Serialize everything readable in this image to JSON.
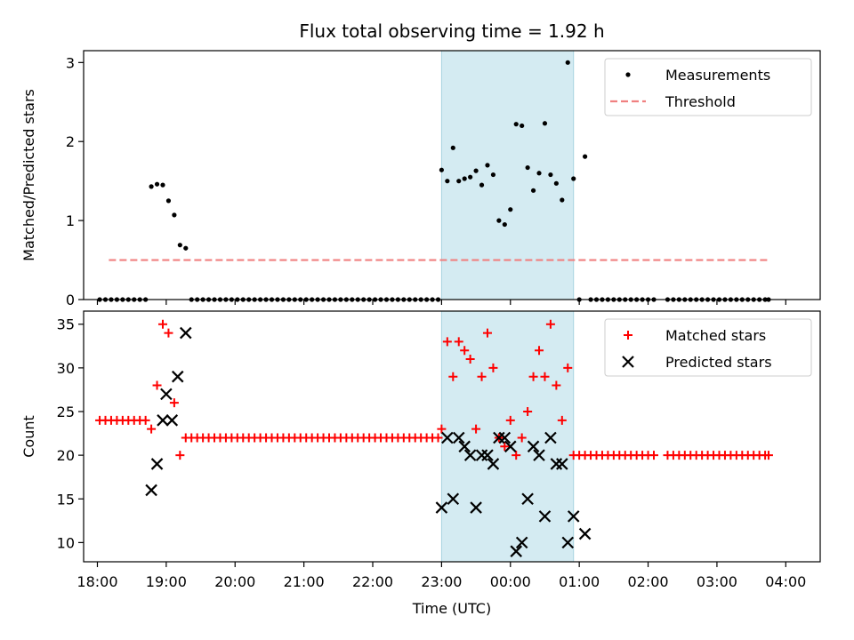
{
  "title": "Flux total observing time = 1.92 h",
  "xlabel": "Time (UTC)",
  "x_ticks": [
    "18:00",
    "19:00",
    "20:00",
    "21:00",
    "22:00",
    "23:00",
    "00:00",
    "01:00",
    "02:00",
    "03:00",
    "04:00"
  ],
  "shaded_interval": {
    "start": "23:00",
    "end": "00:55",
    "color": "#d4ebf2"
  },
  "chart_data": [
    {
      "type": "scatter",
      "ylabel": "Matched/Predicted stars",
      "ylim": [
        0,
        3.15
      ],
      "y_ticks": [
        0,
        1,
        2,
        3
      ],
      "legend": {
        "placement": "top-right"
      },
      "series": [
        {
          "name": "Measurements",
          "marker": "dot",
          "color": "#000000",
          "x": [
            "18:02",
            "18:07",
            "18:12",
            "18:17",
            "18:22",
            "18:27",
            "18:32",
            "18:37",
            "18:42",
            "18:47",
            "18:52",
            "18:57",
            "19:02",
            "19:07",
            "19:12",
            "19:17",
            "19:22",
            "19:27",
            "19:32",
            "19:37",
            "19:42",
            "19:47",
            "19:52",
            "19:57",
            "20:02",
            "20:07",
            "20:12",
            "20:17",
            "20:22",
            "20:27",
            "20:32",
            "20:37",
            "20:42",
            "20:47",
            "20:52",
            "20:57",
            "21:02",
            "21:07",
            "21:12",
            "21:17",
            "21:22",
            "21:27",
            "21:32",
            "21:37",
            "21:42",
            "21:47",
            "21:52",
            "21:57",
            "22:02",
            "22:07",
            "22:12",
            "22:17",
            "22:22",
            "22:27",
            "22:32",
            "22:37",
            "22:42",
            "22:47",
            "22:52",
            "22:57",
            "23:00",
            "23:05",
            "23:10",
            "23:15",
            "23:20",
            "23:25",
            "23:30",
            "23:35",
            "23:40",
            "23:45",
            "23:50",
            "23:55",
            "00:00",
            "00:05",
            "00:10",
            "00:15",
            "00:20",
            "00:25",
            "00:30",
            "00:35",
            "00:40",
            "00:45",
            "00:50",
            "00:55",
            "01:00",
            "01:05",
            "01:10",
            "01:15",
            "01:20",
            "01:25",
            "01:30",
            "01:35",
            "01:40",
            "01:45",
            "01:50",
            "01:55",
            "02:00",
            "02:05",
            "02:17",
            "02:22",
            "02:27",
            "02:32",
            "02:37",
            "02:42",
            "02:47",
            "02:52",
            "02:57",
            "03:02",
            "03:07",
            "03:12",
            "03:17",
            "03:22",
            "03:27",
            "03:32",
            "03:37",
            "03:42",
            "03:45"
          ],
          "y": [
            0,
            0,
            0,
            0,
            0,
            0,
            0,
            0,
            0,
            1.43,
            1.46,
            1.45,
            1.25,
            1.07,
            0.69,
            0.65,
            0,
            0,
            0,
            0,
            0,
            0,
            0,
            0,
            0,
            0,
            0,
            0,
            0,
            0,
            0,
            0,
            0,
            0,
            0,
            0,
            0,
            0,
            0,
            0,
            0,
            0,
            0,
            0,
            0,
            0,
            0,
            0,
            0,
            0,
            0,
            0,
            0,
            0,
            0,
            0,
            0,
            0,
            0,
            0,
            1.64,
            1.5,
            1.92,
            1.5,
            1.53,
            1.55,
            1.63,
            1.45,
            1.7,
            1.58,
            1.0,
            0.95,
            1.14,
            2.22,
            2.2,
            1.67,
            1.38,
            1.6,
            2.23,
            1.58,
            1.47,
            1.26,
            3.0,
            1.53,
            0,
            1.81,
            0,
            0,
            0,
            0,
            0,
            0,
            0,
            0,
            0,
            0,
            0,
            0,
            0,
            0,
            0,
            0,
            0,
            0,
            0,
            0,
            0,
            0,
            0,
            0,
            0,
            0,
            0,
            0,
            0,
            0,
            0
          ]
        },
        {
          "name": "Threshold",
          "marker": "dashed-line",
          "color": "#f08080",
          "x": [
            "18:10",
            "03:45"
          ],
          "y": [
            0.5,
            0.5
          ]
        }
      ]
    },
    {
      "type": "scatter",
      "ylabel": "Count",
      "ylim": [
        7.8,
        36.5
      ],
      "y_ticks": [
        10,
        15,
        20,
        25,
        30,
        35
      ],
      "legend": {
        "placement": "top-right"
      },
      "series": [
        {
          "name": "Matched stars",
          "marker": "plus",
          "color": "#ff0000",
          "x": [
            "18:02",
            "18:07",
            "18:12",
            "18:17",
            "18:22",
            "18:27",
            "18:32",
            "18:37",
            "18:42",
            "18:47",
            "18:52",
            "18:57",
            "19:02",
            "19:07",
            "19:12",
            "19:17",
            "19:22",
            "19:27",
            "19:32",
            "19:37",
            "19:42",
            "19:47",
            "19:52",
            "19:57",
            "20:02",
            "20:07",
            "20:12",
            "20:17",
            "20:22",
            "20:27",
            "20:32",
            "20:37",
            "20:42",
            "20:47",
            "20:52",
            "20:57",
            "21:02",
            "21:07",
            "21:12",
            "21:17",
            "21:22",
            "21:27",
            "21:32",
            "21:37",
            "21:42",
            "21:47",
            "21:52",
            "21:57",
            "22:02",
            "22:07",
            "22:12",
            "22:17",
            "22:22",
            "22:27",
            "22:32",
            "22:37",
            "22:42",
            "22:47",
            "22:52",
            "22:57",
            "23:00",
            "23:05",
            "23:10",
            "23:15",
            "23:20",
            "23:25",
            "23:30",
            "23:35",
            "23:40",
            "23:45",
            "23:50",
            "23:55",
            "00:00",
            "00:05",
            "00:10",
            "00:15",
            "00:20",
            "00:25",
            "00:30",
            "00:35",
            "00:40",
            "00:45",
            "00:50",
            "00:55",
            "01:00",
            "01:05",
            "01:10",
            "01:15",
            "01:20",
            "01:25",
            "01:30",
            "01:35",
            "01:40",
            "01:45",
            "01:50",
            "01:55",
            "02:00",
            "02:05",
            "02:17",
            "02:22",
            "02:27",
            "02:32",
            "02:37",
            "02:42",
            "02:47",
            "02:52",
            "02:57",
            "03:02",
            "03:07",
            "03:12",
            "03:17",
            "03:22",
            "03:27",
            "03:32",
            "03:37",
            "03:42",
            "03:45"
          ],
          "y": [
            24,
            24,
            24,
            24,
            24,
            24,
            24,
            24,
            24,
            23,
            28,
            35,
            34,
            26,
            20,
            22,
            22,
            22,
            22,
            22,
            22,
            22,
            22,
            22,
            22,
            22,
            22,
            22,
            22,
            22,
            22,
            22,
            22,
            22,
            22,
            22,
            22,
            22,
            22,
            22,
            22,
            22,
            22,
            22,
            22,
            22,
            22,
            22,
            22,
            22,
            22,
            22,
            22,
            22,
            22,
            22,
            22,
            22,
            22,
            22,
            23,
            33,
            29,
            33,
            32,
            31,
            23,
            29,
            34,
            30,
            22,
            21,
            24,
            20,
            22,
            25,
            29,
            32,
            29,
            35,
            28,
            24,
            30,
            20,
            20,
            20,
            20,
            20,
            20,
            20,
            20,
            20,
            20,
            20,
            20,
            20,
            20,
            20,
            20,
            20,
            20,
            20,
            20,
            20,
            20,
            20,
            20,
            20,
            20,
            20,
            20,
            20,
            20,
            20,
            20,
            20,
            20
          ]
        },
        {
          "name": "Predicted stars",
          "marker": "x",
          "color": "#000000",
          "x": [
            "18:47",
            "18:52",
            "18:57",
            "19:00",
            "19:05",
            "19:10",
            "19:17",
            "23:00",
            "23:05",
            "23:10",
            "23:15",
            "23:20",
            "23:25",
            "23:30",
            "23:35",
            "23:40",
            "23:45",
            "23:50",
            "23:55",
            "00:00",
            "00:05",
            "00:10",
            "00:15",
            "00:20",
            "00:25",
            "00:30",
            "00:35",
            "00:40",
            "00:45",
            "00:50",
            "00:55",
            "01:05"
          ],
          "y": [
            16,
            19,
            24,
            27,
            24,
            29,
            34,
            14,
            22,
            15,
            22,
            21,
            20,
            14,
            20,
            20,
            19,
            22,
            22,
            21,
            9,
            10,
            15,
            21,
            20,
            13,
            22,
            19,
            19,
            10,
            13,
            11
          ]
        }
      ]
    }
  ]
}
